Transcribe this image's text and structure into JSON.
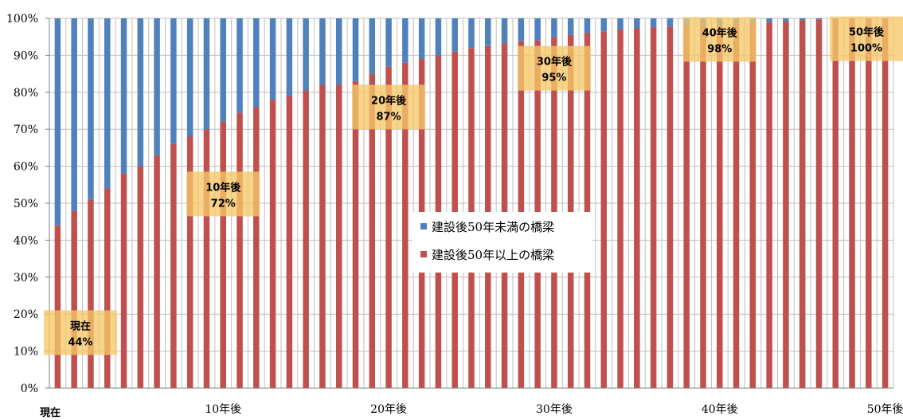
{
  "chart_data": {
    "type": "bar",
    "stacked": true,
    "percent": true,
    "ylim": [
      0,
      100
    ],
    "yticks": [
      "0%",
      "10%",
      "20%",
      "30%",
      "40%",
      "50%",
      "60%",
      "70%",
      "80%",
      "90%",
      "100%"
    ],
    "x_tick_labels": [
      {
        "index": 0,
        "label": "現在"
      },
      {
        "index": 10,
        "label": "10年後"
      },
      {
        "index": 20,
        "label": "20年後"
      },
      {
        "index": 30,
        "label": "30年後"
      },
      {
        "index": 40,
        "label": "40年後"
      },
      {
        "index": 50,
        "label": "50年後"
      }
    ],
    "grid": true,
    "legend_placement": "center-right",
    "series": [
      {
        "name": "建設後50年以上の橋梁",
        "color": "#c0504d",
        "values": [
          44,
          48,
          51,
          54,
          58,
          60,
          63,
          66,
          68,
          70,
          72,
          74.5,
          76,
          78,
          79,
          80.5,
          82,
          82,
          83,
          85,
          87,
          88,
          89,
          90,
          91,
          92,
          92.5,
          93.2,
          93.8,
          94,
          95,
          95.5,
          96,
          96.5,
          97,
          97.3,
          97.6,
          97.8,
          98,
          98.2,
          98,
          98.4,
          98.6,
          98.9,
          99.2,
          99.5,
          99.7,
          99.8,
          99.9,
          100,
          100
        ]
      },
      {
        "name": "建設後50年未満の橋梁",
        "color": "#4f81bd",
        "values": [
          56,
          52,
          49,
          46,
          42,
          40,
          37,
          34,
          32,
          30,
          28,
          25.5,
          24,
          22,
          21,
          19.5,
          18,
          18,
          17,
          15,
          13,
          12,
          11,
          10,
          9,
          8,
          7.5,
          6.8,
          6.2,
          6,
          5,
          4.5,
          4,
          3.5,
          3,
          2.7,
          2.4,
          2.2,
          2,
          1.8,
          2,
          1.6,
          1.4,
          1.1,
          0.8,
          0.5,
          0.3,
          0.2,
          0.1,
          0,
          0
        ]
      }
    ],
    "annotations": [
      {
        "index": 0,
        "line1": "現在",
        "line2": "44%"
      },
      {
        "index": 10,
        "line1": "10年後",
        "line2": "72%"
      },
      {
        "index": 20,
        "line1": "20年後",
        "line2": "87%"
      },
      {
        "index": 30,
        "line1": "30年後",
        "line2": "95%"
      },
      {
        "index": 40,
        "line1": "40年後",
        "line2": "98%"
      },
      {
        "index": 50,
        "line1": "50年後",
        "line2": "100%"
      }
    ]
  },
  "style": {
    "grid_color": "#bfbfbf",
    "axis_color": "#808080",
    "annotation_fill": "#f6c86a"
  }
}
